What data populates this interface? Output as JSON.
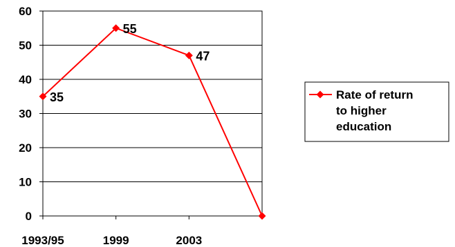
{
  "chart_data": {
    "type": "line",
    "categories": [
      "1993/95",
      "1999",
      "2003",
      ""
    ],
    "series": [
      {
        "name": "Rate of return to higher education",
        "values": [
          35,
          55,
          47,
          0
        ],
        "color": "#ff0000",
        "marker": "diamond",
        "data_labels": [
          "35",
          "55",
          "47",
          ""
        ]
      }
    ],
    "ylim": [
      0,
      60
    ],
    "yticks": [
      0,
      10,
      20,
      30,
      40,
      50,
      60
    ],
    "grid": "horizontal",
    "legend": {
      "placement": "right",
      "lines": [
        "Rate of return",
        "to higher",
        "education"
      ]
    }
  }
}
